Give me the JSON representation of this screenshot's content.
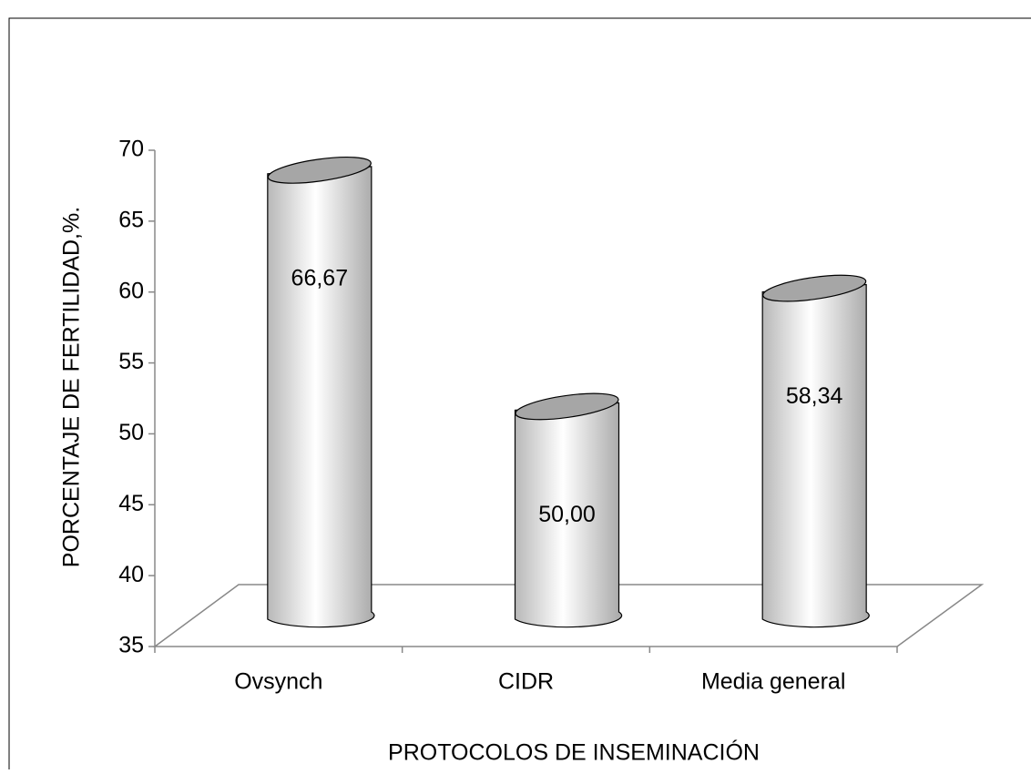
{
  "chart_data": {
    "type": "bar",
    "x_label": "PROTOCOLOS DE INSEMINACIÓN",
    "y_label": "PORCENTAJE DE FERTILIDAD,%.",
    "categories": [
      "Ovsynch",
      "CIDR",
      "Media general"
    ],
    "values": [
      66.67,
      50.0,
      58.34
    ],
    "value_labels": [
      "66,67",
      "50,00",
      "58,34"
    ],
    "color": "#d9d9d9",
    "ylim": [
      35,
      70
    ],
    "yticks": [
      35,
      40,
      45,
      50,
      55,
      60,
      65,
      70
    ],
    "grid": false
  }
}
